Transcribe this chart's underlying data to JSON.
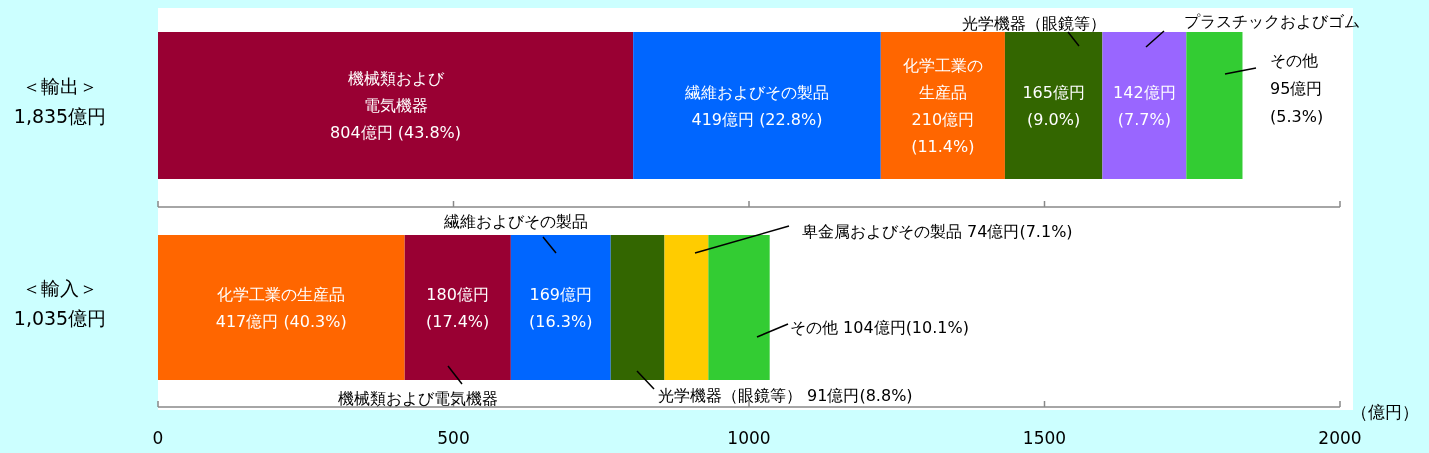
{
  "chart_data": {
    "type": "bar",
    "orientation": "horizontal",
    "categories": [
      "＜輸出＞\n1,835億円",
      "＜輸入＞\n1,035億円"
    ],
    "xlabel": "（億円）",
    "xlim": [
      0,
      2000
    ],
    "xticks": [
      0,
      500,
      1000,
      1500,
      2000
    ],
    "series": [
      {
        "name": "機械類および電気機器",
        "color": "#990033",
        "values": [
          804,
          180
        ],
        "base": [
          0,
          417
        ],
        "value_labels": [
          "804億円 (43.8%)",
          "180億円 (17.4%)"
        ]
      },
      {
        "name": "繊維およびその製品",
        "color": "#0066ff",
        "values": [
          419,
          169
        ],
        "base": [
          804,
          597
        ],
        "value_labels": [
          "419億円 (22.8%)",
          "169億円 (16.3%)"
        ]
      },
      {
        "name": "化学工業の生産品",
        "color": "#ff6600",
        "values": [
          210,
          417
        ],
        "base": [
          1223,
          0
        ],
        "value_labels": [
          "210億円 (11.4%)",
          "417億円 (40.3%)"
        ]
      },
      {
        "name": "光学機器（眼鏡等）",
        "color": "#336600",
        "values": [
          165,
          91
        ],
        "base": [
          1433,
          766
        ],
        "value_labels": [
          "165億円 (9.0%)",
          "91億円(8.8%)"
        ]
      },
      {
        "name": "プラスチックおよびゴム",
        "color": "#9966ff",
        "values": [
          142,
          null
        ],
        "base": [
          1598,
          null
        ],
        "value_labels": [
          "142億円 (7.7%)",
          null
        ]
      },
      {
        "name": "その他",
        "color": "#33cc33",
        "values": [
          95,
          104
        ],
        "base": [
          1740,
          931
        ],
        "value_labels": [
          "95億円 (5.3%)",
          "104億円(10.1%)"
        ]
      },
      {
        "name": "卑金属およびその製品",
        "color": "#ffcc00",
        "values": [
          null,
          74
        ],
        "base": [
          null,
          857
        ],
        "value_labels": [
          null,
          "74億円(7.1%)"
        ]
      }
    ]
  }
}
